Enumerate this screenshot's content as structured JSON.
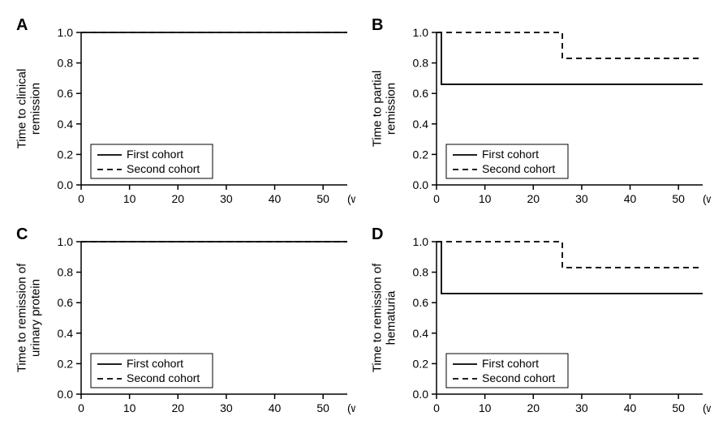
{
  "panels": [
    {
      "id": "A",
      "label": "A",
      "y_title_lines": [
        "Time to clinical",
        "remission"
      ],
      "x_unit": "(weeks)",
      "xlim": [
        0,
        55
      ],
      "ylim": [
        0.0,
        1.0
      ],
      "xticks": [
        0,
        10,
        20,
        30,
        40,
        50
      ],
      "yticks": [
        0.0,
        0.2,
        0.4,
        0.6,
        0.8,
        1.0
      ],
      "series": {
        "first": {
          "label": "First cohort",
          "style": "solid",
          "points": [
            [
              0,
              1.0
            ],
            [
              55,
              1.0
            ]
          ]
        },
        "second": {
          "label": "Second cohort",
          "style": "dashed",
          "points": [
            [
              0,
              1.0
            ],
            [
              55,
              1.0
            ]
          ]
        }
      },
      "colors": {
        "line": "#000000",
        "bg": "#ffffff"
      }
    },
    {
      "id": "B",
      "label": "B",
      "y_title_lines": [
        "Time to partial",
        "remission"
      ],
      "x_unit": "(weeks)",
      "xlim": [
        0,
        55
      ],
      "ylim": [
        0.0,
        1.0
      ],
      "xticks": [
        0,
        10,
        20,
        30,
        40,
        50
      ],
      "yticks": [
        0.0,
        0.2,
        0.4,
        0.6,
        0.8,
        1.0
      ],
      "series": {
        "first": {
          "label": "First cohort",
          "style": "solid",
          "points": [
            [
              0,
              1.0
            ],
            [
              1,
              1.0
            ],
            [
              1,
              0.66
            ],
            [
              55,
              0.66
            ]
          ]
        },
        "second": {
          "label": "Second cohort",
          "style": "dashed",
          "points": [
            [
              0,
              1.0
            ],
            [
              26,
              1.0
            ],
            [
              26,
              0.83
            ],
            [
              55,
              0.83
            ]
          ]
        }
      },
      "colors": {
        "line": "#000000",
        "bg": "#ffffff"
      }
    },
    {
      "id": "C",
      "label": "C",
      "y_title_lines": [
        "Time to remission of",
        "urinary protein"
      ],
      "x_unit": "(weeks)",
      "xlim": [
        0,
        55
      ],
      "ylim": [
        0.0,
        1.0
      ],
      "xticks": [
        0,
        10,
        20,
        30,
        40,
        50
      ],
      "yticks": [
        0.0,
        0.2,
        0.4,
        0.6,
        0.8,
        1.0
      ],
      "series": {
        "first": {
          "label": "First cohort",
          "style": "solid",
          "points": [
            [
              0,
              1.0
            ],
            [
              55,
              1.0
            ]
          ]
        },
        "second": {
          "label": "Second cohort",
          "style": "dashed",
          "points": [
            [
              0,
              1.0
            ],
            [
              55,
              1.0
            ]
          ]
        }
      },
      "colors": {
        "line": "#000000",
        "bg": "#ffffff"
      }
    },
    {
      "id": "D",
      "label": "D",
      "y_title_lines": [
        "Time to remission of",
        "hematuria"
      ],
      "x_unit": "(weeks)",
      "xlim": [
        0,
        55
      ],
      "ylim": [
        0.0,
        1.0
      ],
      "xticks": [
        0,
        10,
        20,
        30,
        40,
        50
      ],
      "yticks": [
        0.0,
        0.2,
        0.4,
        0.6,
        0.8,
        1.0
      ],
      "series": {
        "first": {
          "label": "First cohort",
          "style": "solid",
          "points": [
            [
              0,
              1.0
            ],
            [
              1,
              1.0
            ],
            [
              1,
              0.66
            ],
            [
              55,
              0.66
            ]
          ]
        },
        "second": {
          "label": "Second cohort",
          "style": "dashed",
          "points": [
            [
              0,
              1.0
            ],
            [
              26,
              1.0
            ],
            [
              26,
              0.83
            ],
            [
              55,
              0.83
            ]
          ]
        }
      },
      "colors": {
        "line": "#000000",
        "bg": "#ffffff"
      }
    }
  ],
  "plot_style": {
    "tick_fontsize": 14,
    "axis_title_fontsize": 15,
    "panel_label_fontsize": 20,
    "line_width": 1.8,
    "dash_pattern": "7 5",
    "legend_fontsize": 14
  }
}
